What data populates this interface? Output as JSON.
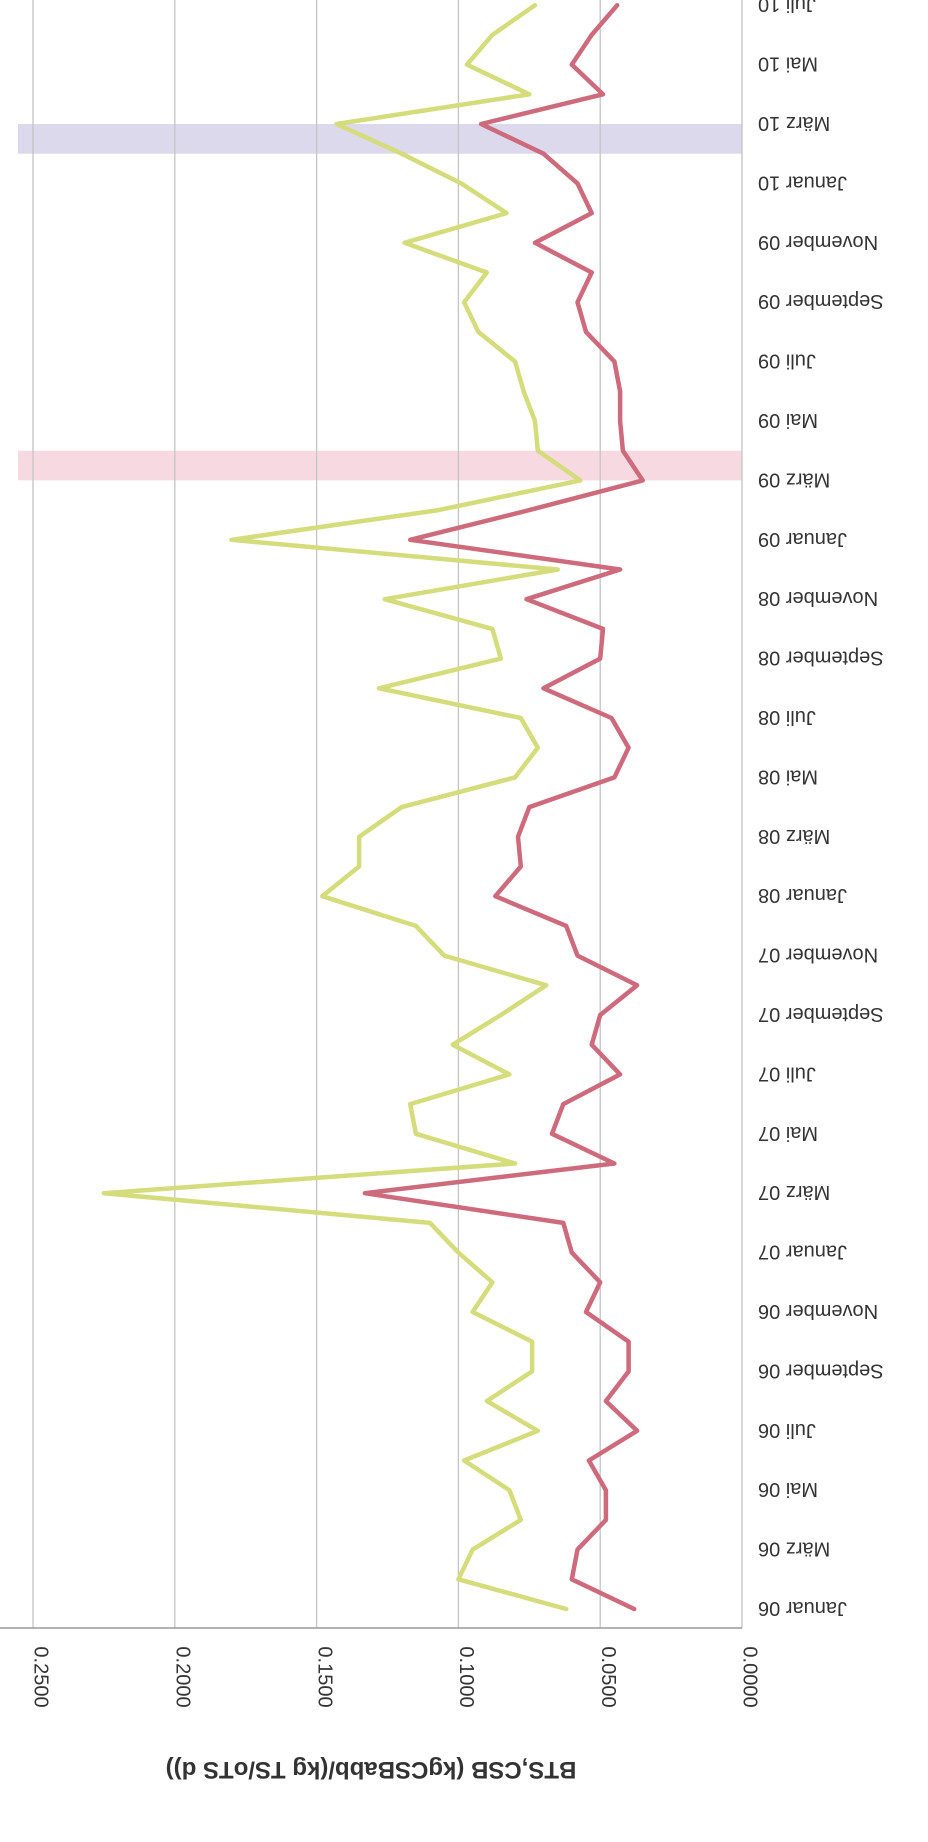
{
  "chart_data": {
    "type": "line",
    "title": "",
    "xlabel": "",
    "ylabel": "BTS,CSB (kgCSBabb/(kg TS/oTS d))",
    "ylim": [
      0,
      0.25
    ],
    "yticks": [
      "0.0000",
      "0.0500",
      "0.1000",
      "0.1500",
      "0.2000",
      "0.2500"
    ],
    "ytick_values": [
      0,
      0.05,
      0.1,
      0.15,
      0.2,
      0.25
    ],
    "x": [
      "Januar 06",
      "Februar 06",
      "März 06",
      "April 06",
      "Mai 06",
      "Juni 06",
      "Juli 06",
      "August 06",
      "September 06",
      "Oktober 06",
      "November 06",
      "Dezember 06",
      "Januar 07",
      "Februar 07",
      "März 07",
      "April 07",
      "Mai 07",
      "Juni 07",
      "Juli 07",
      "August 07",
      "September 07",
      "Oktober 07",
      "November 07",
      "Dezember 07",
      "Januar 08",
      "Februar 08",
      "März 08",
      "April 08",
      "Mai 08",
      "Juni 08",
      "Juli 08",
      "August 08",
      "September 08",
      "Oktober 08",
      "November 08",
      "Dezember 08",
      "Januar 09",
      "Februar 09",
      "März 09",
      "April 09",
      "Mai 09",
      "Juni 09",
      "Juli 09",
      "August 09",
      "September 09",
      "Oktober 09",
      "November 09",
      "Dezember 09",
      "Januar 10",
      "Februar 10",
      "März 10",
      "April 10",
      "Mai 10",
      "Juni 10",
      "Juli 10"
    ],
    "xtick_labels": [
      "Januar 06",
      "März 06",
      "Mai 06",
      "Juli 06",
      "September 06",
      "November 06",
      "Januar 07",
      "März 07",
      "Mai 07",
      "Juli 07",
      "September 07",
      "November 07",
      "Januar 08",
      "März 08",
      "Mai 08",
      "Juli 08",
      "September 08",
      "November 08",
      "Januar 09",
      "März 09",
      "Mai 09",
      "Juli 09",
      "September 09",
      "November 09",
      "Januar 10",
      "März 10",
      "Mai 10",
      "Juli 10"
    ],
    "series": [
      {
        "name": "",
        "color": "#d4dc7c",
        "values": [
          0.062,
          0.1,
          0.095,
          0.078,
          0.082,
          0.098,
          0.072,
          0.09,
          0.074,
          0.074,
          0.095,
          0.088,
          0.1,
          0.11,
          0.225,
          0.08,
          0.115,
          0.117,
          0.082,
          0.102,
          0.085,
          0.069,
          0.105,
          0.115,
          0.148,
          0.135,
          0.135,
          0.12,
          0.08,
          0.072,
          0.078,
          0.128,
          0.085,
          0.088,
          0.126,
          0.065,
          0.18,
          0.107,
          0.057,
          0.072,
          0.073,
          0.077,
          0.08,
          0.093,
          0.098,
          0.09,
          0.119,
          0.083,
          0.099,
          0.12,
          0.143,
          0.075,
          0.097,
          0.088,
          0.073
        ]
      },
      {
        "name": "",
        "color": "#cd6a7c",
        "values": [
          0.038,
          0.06,
          0.058,
          0.048,
          0.048,
          0.054,
          0.037,
          0.048,
          0.04,
          0.04,
          0.055,
          0.05,
          0.06,
          0.063,
          0.133,
          0.045,
          0.067,
          0.063,
          0.043,
          0.053,
          0.05,
          0.037,
          0.058,
          0.062,
          0.087,
          0.078,
          0.079,
          0.075,
          0.045,
          0.04,
          0.046,
          0.07,
          0.05,
          0.049,
          0.076,
          0.043,
          0.117,
          0.075,
          0.035,
          0.042,
          0.043,
          0.043,
          0.045,
          0.055,
          0.058,
          0.053,
          0.073,
          0.053,
          0.058,
          0.07,
          0.092,
          0.049,
          0.06,
          0.053,
          0.044
        ]
      }
    ],
    "highlight_bands": [
      {
        "from": "März 09",
        "to": "April 09",
        "color": "#f7d9e2"
      },
      {
        "from": "Februar 10",
        "to": "März 10",
        "color": "#dcd9ec"
      }
    ],
    "grid": true,
    "orientation": "rotated-180"
  }
}
